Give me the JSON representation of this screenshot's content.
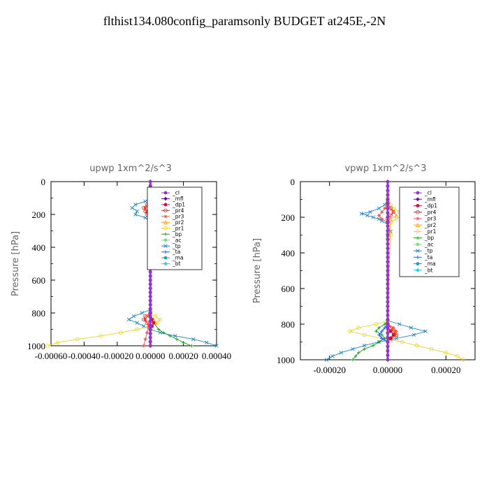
{
  "title": "flthist134.080config_paramsonly  BUDGET at245E,-2N",
  "legend_entries": [
    "_cl",
    "_mfl",
    "_dp1",
    "_pr4",
    "_pr3",
    "_pr2",
    "_pr1",
    "_bp",
    "_ac",
    "_tp",
    "_ta",
    "_ma",
    "_bt"
  ],
  "colors": {
    "_cl": "#9b30d0",
    "_mfl": "#6a0a9a",
    "_dp1": "#c8103c",
    "_pr4": "#ee2020",
    "_pr3": "#ff5050",
    "_pr2": "#ffa020",
    "_pr1": "#f0d020",
    "_bp": "#1aa01a",
    "_ac": "#7ae07a",
    "_tp": "#2088c8",
    "_ta": "#3060ff",
    "_ma": "#20a0b0",
    "_bt": "#20d0e8"
  },
  "chart_data": [
    {
      "type": "line",
      "title": "upwp   1xm^2/s^3",
      "ylabel": "Pressure [hPa]",
      "ylim": [
        1000,
        0
      ],
      "xlim": [
        -0.0006,
        0.0004
      ],
      "xticks": [
        -0.0006,
        -0.0004,
        -0.0002,
        0.0,
        0.0002,
        0.0004
      ],
      "xtick_labels": [
        "-0.00060",
        "-0.00040",
        "-0.00020",
        "0.00000",
        "0.00020",
        "0.00040"
      ],
      "yticks": [
        0,
        200,
        400,
        600,
        800,
        1000
      ],
      "ytick_labels": [
        "0",
        "200",
        "400",
        "600",
        "800",
        "1000"
      ],
      "legend": "top-right",
      "series": [
        {
          "name": "_tp",
          "y": [
            100,
            120,
            140,
            160,
            180,
            200,
            220,
            240,
            780,
            800,
            820,
            840,
            860,
            880,
            900,
            920,
            940,
            960,
            980,
            1000
          ],
          "x": [
            0,
            -3e-05,
            -9e-05,
            -0.00011,
            -8e-05,
            -9e-05,
            -3e-05,
            0,
            0,
            -5e-05,
            -0.0001,
            -0.00013,
            -8e-05,
            -4e-05,
            0,
            6e-05,
            0.00015,
            0.00026,
            0.00034,
            0.0004
          ]
        },
        {
          "name": "_bp",
          "y": [
            780,
            820,
            860,
            900,
            920,
            940,
            960,
            980,
            1000
          ],
          "x": [
            0,
            -1e-05,
            2e-05,
            5e-05,
            8e-05,
            0.00012,
            0.00016,
            0.0002,
            0.00025
          ]
        },
        {
          "name": "_pr1",
          "y": [
            100,
            120,
            140,
            160,
            180,
            200,
            220,
            800,
            820,
            840,
            860,
            880,
            900,
            920,
            940,
            960,
            980,
            1000
          ],
          "x": [
            0,
            2e-05,
            4e-05,
            5e-05,
            4e-05,
            3e-05,
            1e-05,
            0,
            3e-05,
            6e-05,
            4e-05,
            0,
            -8e-05,
            -0.00018,
            -0.0003,
            -0.00044,
            -0.00056,
            -0.00062
          ]
        },
        {
          "name": "_pr2",
          "y": [
            120,
            140,
            160,
            180,
            200,
            220,
            820,
            840,
            860,
            880
          ],
          "x": [
            0,
            2e-05,
            3e-05,
            2e-05,
            1e-05,
            0,
            0,
            2e-05,
            3e-05,
            1e-05
          ]
        },
        {
          "name": "_pr3",
          "y": [
            120,
            140,
            160,
            180,
            200,
            220,
            800,
            840,
            880,
            920,
            960,
            1000
          ],
          "x": [
            0,
            -1e-05,
            -3e-05,
            -2e-05,
            -1e-05,
            0,
            0,
            -3e-05,
            -1e-05,
            -2e-05,
            -3e-05,
            -4e-05
          ]
        },
        {
          "name": "_pr4",
          "y": [
            120,
            140,
            160,
            180,
            200,
            220,
            800,
            820,
            840,
            860,
            880
          ],
          "x": [
            0,
            -2e-05,
            -4e-05,
            -3e-05,
            -2e-05,
            0,
            0,
            -3e-05,
            -4e-05,
            -2e-05,
            0
          ]
        },
        {
          "name": "_dp1",
          "y": [
            820,
            840,
            860,
            880,
            900
          ],
          "x": [
            0,
            1e-05,
            2e-05,
            1e-05,
            0
          ]
        },
        {
          "name": "_ac",
          "y": [
            0,
            1000
          ],
          "x": [
            0,
            0
          ]
        },
        {
          "name": "_ta",
          "y": [
            0,
            1000
          ],
          "x": [
            0,
            0
          ]
        },
        {
          "name": "_mfl",
          "y": [
            0,
            1000
          ],
          "x": [
            0,
            0
          ]
        },
        {
          "name": "_cl",
          "y": [
            0,
            1000
          ],
          "x": [
            0,
            0
          ]
        }
      ]
    },
    {
      "type": "line",
      "title": "vpwp   1xm^2/s^3",
      "ylabel": "Pressure [hPa]",
      "ylim": [
        1000,
        0
      ],
      "xlim": [
        -0.0003,
        0.0003
      ],
      "xticks": [
        -0.0002,
        0.0,
        0.0002
      ],
      "xtick_labels": [
        "-0.00020",
        "0.00000",
        "0.00020"
      ],
      "yticks": [
        0,
        200,
        400,
        600,
        800,
        1000
      ],
      "ytick_labels": [
        "0",
        "200",
        "400",
        "600",
        "800",
        "1000"
      ],
      "legend": "top-right",
      "series": [
        {
          "name": "_tp",
          "y": [
            100,
            130,
            150,
            170,
            180,
            190,
            200,
            210,
            220,
            240,
            280,
            300,
            780,
            800,
            820,
            840,
            860,
            880,
            900,
            920,
            940,
            960,
            980,
            1000
          ],
          "x": [
            0,
            -1e-05,
            -3e-05,
            -6e-05,
            -9e-05,
            -7e-05,
            -5e-05,
            -3e-05,
            -2e-05,
            0,
            1e-05,
            0,
            0,
            4e-05,
            8e-05,
            0.00013,
            9e-05,
            3e-05,
            -3e-05,
            -8e-05,
            -0.00012,
            -0.00016,
            -0.00019,
            -0.00021
          ]
        },
        {
          "name": "_pr1",
          "y": [
            100,
            130,
            150,
            170,
            190,
            210,
            230,
            280,
            300,
            320,
            780,
            800,
            820,
            840,
            860,
            880,
            900,
            920,
            940,
            960,
            980,
            1000
          ],
          "x": [
            0,
            1e-05,
            2e-05,
            4e-05,
            5e-05,
            3e-05,
            1e-05,
            0,
            1e-05,
            0,
            0,
            -4e-05,
            -0.0001,
            -0.00013,
            -8e-05,
            -2e-05,
            5e-05,
            0.0001,
            0.00015,
            0.0002,
            0.00024,
            0.00026
          ]
        },
        {
          "name": "_bp",
          "y": [
            780,
            800,
            820,
            840,
            860,
            880,
            900,
            920,
            940,
            960,
            980,
            1000
          ],
          "x": [
            0,
            -1e-05,
            -3e-05,
            -4e-05,
            -2e-05,
            -1e-05,
            -3e-05,
            -5e-05,
            -8e-05,
            -0.0001,
            -0.00011,
            -0.00012
          ]
        },
        {
          "name": "_pr2",
          "y": [
            140,
            170,
            190,
            210,
            800,
            830,
            860,
            890
          ],
          "x": [
            0,
            2e-05,
            3e-05,
            1e-05,
            0,
            2e-05,
            3e-05,
            1e-05
          ]
        },
        {
          "name": "_pr3",
          "y": [
            120,
            150,
            170,
            190,
            210,
            230,
            800,
            820,
            840,
            860,
            880
          ],
          "x": [
            0,
            -1e-05,
            -2e-05,
            -3e-05,
            -2e-05,
            0,
            0,
            2e-05,
            3e-05,
            2e-05,
            0
          ]
        },
        {
          "name": "_pr4",
          "y": [
            120,
            150,
            170,
            190,
            210,
            230,
            800,
            820,
            840,
            860,
            880
          ],
          "x": [
            0,
            1e-05,
            2e-05,
            1e-05,
            0,
            0,
            0,
            1e-05,
            2e-05,
            3e-05,
            1e-05
          ]
        },
        {
          "name": "_dp1",
          "y": [
            820,
            840,
            860,
            880
          ],
          "x": [
            0,
            1e-05,
            2e-05,
            1e-05
          ]
        },
        {
          "name": "_ta",
          "y": [
            800,
            820,
            840,
            860,
            880,
            900
          ],
          "x": [
            0,
            -1e-05,
            -2e-05,
            -3e-05,
            -2e-05,
            0
          ]
        },
        {
          "name": "_ac",
          "y": [
            0,
            1000
          ],
          "x": [
            0,
            0
          ]
        },
        {
          "name": "_mfl",
          "y": [
            0,
            1000
          ],
          "x": [
            0,
            0
          ]
        },
        {
          "name": "_cl",
          "y": [
            0,
            1000
          ],
          "x": [
            0,
            0
          ]
        }
      ]
    }
  ]
}
